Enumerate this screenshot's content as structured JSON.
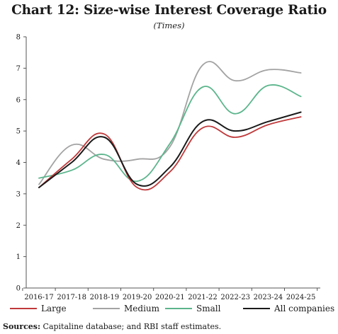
{
  "title": "Chart 12: Size-wise Interest Coverage Ratio",
  "subtitle": "(Times)",
  "source_label": "Sources:",
  "source_text": " Capitaline database; and RBI staff estimates.",
  "colors": {
    "Large": "#c0393b",
    "Medium": "#a3a3a3",
    "Small": "#5bb58c",
    "All companies": "#1a1a1a"
  },
  "chart_data": {
    "type": "line",
    "title": "Chart 12: Size-wise Interest Coverage Ratio",
    "subtitle": "(Times)",
    "xlabel": "",
    "ylabel": "",
    "ylim": [
      0,
      8
    ],
    "yticks": [
      0,
      1,
      2,
      3,
      4,
      5,
      6,
      7,
      8
    ],
    "grid": false,
    "legend_position": "bottom",
    "categories": [
      "2016-17",
      "2017-18",
      "2018-19",
      "2019-20",
      "2020-21",
      "2021-22",
      "2022-23",
      "2023-24",
      "2024-25"
    ],
    "series": [
      {
        "name": "Large",
        "values": [
          3.2,
          4.1,
          4.9,
          3.2,
          3.7,
          5.1,
          4.8,
          5.2,
          5.45
        ]
      },
      {
        "name": "Medium",
        "values": [
          3.3,
          4.55,
          4.1,
          4.1,
          4.5,
          7.1,
          6.6,
          6.95,
          6.85
        ]
      },
      {
        "name": "Small",
        "values": [
          3.5,
          3.75,
          4.25,
          3.4,
          4.6,
          6.4,
          5.55,
          6.45,
          6.1
        ]
      },
      {
        "name": "All companies",
        "values": [
          3.2,
          4.0,
          4.8,
          3.3,
          3.85,
          5.3,
          5.0,
          5.3,
          5.6
        ]
      }
    ]
  }
}
